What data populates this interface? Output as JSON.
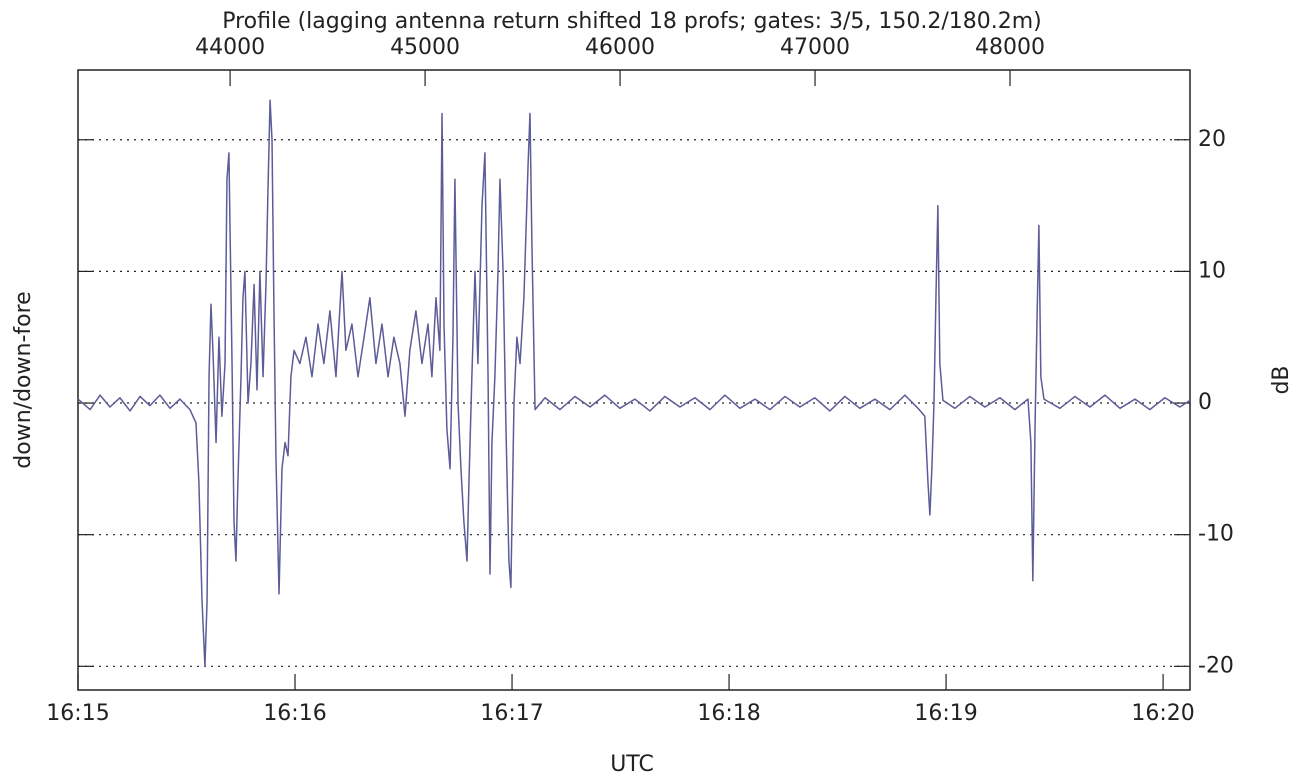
{
  "chart_data": {
    "type": "line",
    "title": "Profile (lagging antenna return shifted 18 profs; gates: 3/5, 150.2/180.2m)",
    "x_label": "UTC",
    "y_label": "down/down-fore",
    "y2_label": "dB",
    "xlim": [
      43220,
      48923
    ],
    "xticks": [
      {
        "value": 43220,
        "label": "16:15"
      },
      {
        "value": 44333,
        "label": "16:16"
      },
      {
        "value": 45446,
        "label": "16:17"
      },
      {
        "value": 46559,
        "label": "16:18"
      },
      {
        "value": 47672,
        "label": "16:19"
      },
      {
        "value": 48785,
        "label": "16:20"
      }
    ],
    "x2ticks": [
      44000,
      45000,
      46000,
      47000,
      48000
    ],
    "ylim": [
      -21.8,
      25.3
    ],
    "yticks": [
      -20,
      -10,
      0,
      10,
      20
    ],
    "grid": true,
    "x": [
      43220,
      43282,
      43333,
      43384,
      43435,
      43487,
      43538,
      43589,
      43640,
      43692,
      43743,
      43794,
      43825,
      43840,
      43856,
      43871,
      43882,
      43892,
      43902,
      43912,
      43928,
      43943,
      43958,
      43974,
      43984,
      43994,
      44010,
      44020,
      44030,
      44040,
      44056,
      44066,
      44076,
      44092,
      44107,
      44123,
      44138,
      44153,
      44169,
      44184,
      44194,
      44205,
      44215,
      44225,
      44235,
      44251,
      44266,
      44282,
      44297,
      44312,
      44328,
      44358,
      44389,
      44420,
      44451,
      44481,
      44512,
      44543,
      44574,
      44594,
      44625,
      44656,
      44687,
      44717,
      44748,
      44779,
      44810,
      44840,
      44871,
      44897,
      44922,
      44953,
      44984,
      45015,
      45035,
      45056,
      45076,
      45087,
      45097,
      45112,
      45128,
      45143,
      45153,
      45169,
      45184,
      45199,
      45215,
      45225,
      45240,
      45256,
      45271,
      45292,
      45307,
      45323,
      45333,
      45343,
      45358,
      45374,
      45384,
      45400,
      45415,
      45430,
      45440,
      45456,
      45471,
      45487,
      45507,
      45528,
      45538,
      45548,
      45564,
      45615,
      45692,
      45769,
      45846,
      45922,
      45999,
      46076,
      46153,
      46230,
      46307,
      46384,
      46461,
      46538,
      46615,
      46692,
      46769,
      46846,
      46922,
      46999,
      47076,
      47153,
      47230,
      47307,
      47384,
      47461,
      47528,
      47563,
      47579,
      47589,
      47599,
      47610,
      47620,
      47630,
      47640,
      47656,
      47717,
      47794,
      47871,
      47948,
      48025,
      48092,
      48107,
      48117,
      48128,
      48138,
      48148,
      48158,
      48174,
      48256,
      48333,
      48410,
      48487,
      48564,
      48641,
      48717,
      48794,
      48871,
      48923
    ],
    "series": [
      {
        "color": "#5c5c98",
        "values": [
          0.3,
          -0.5,
          0.6,
          -0.3,
          0.4,
          -0.6,
          0.5,
          -0.2,
          0.6,
          -0.4,
          0.3,
          -0.5,
          -1.5,
          -6,
          -15,
          -20,
          -15,
          2,
          7.5,
          4,
          -3,
          5,
          -1,
          3,
          17,
          19,
          3,
          -9,
          -12,
          -6,
          2,
          8,
          10,
          0,
          3,
          9,
          1,
          10,
          2,
          9,
          16,
          23,
          20,
          7,
          -4,
          -14.5,
          -5,
          -3,
          -4,
          2,
          4,
          3,
          5,
          2,
          6,
          3,
          7,
          2,
          10,
          4,
          6,
          2,
          5,
          8,
          3,
          6,
          2,
          5,
          3,
          -1,
          4,
          7,
          3,
          6,
          2,
          8,
          4,
          22,
          6,
          -2,
          -5,
          5,
          17,
          0,
          -5,
          -9,
          -12,
          -6,
          2,
          10,
          3,
          15,
          19,
          2,
          -13,
          -3,
          2,
          10,
          17,
          10,
          -2,
          -12,
          -14,
          0,
          5,
          3,
          8,
          18,
          22,
          12,
          -0.5,
          0.4,
          -0.5,
          0.5,
          -0.3,
          0.6,
          -0.4,
          0.3,
          -0.6,
          0.5,
          -0.3,
          0.4,
          -0.5,
          0.6,
          -0.4,
          0.3,
          -0.5,
          0.5,
          -0.3,
          0.4,
          -0.6,
          0.5,
          -0.4,
          0.3,
          -0.5,
          0.6,
          -0.4,
          -1,
          -6,
          -8.5,
          -5,
          0,
          8,
          15,
          3,
          0.2,
          -0.4,
          0.5,
          -0.3,
          0.4,
          -0.5,
          0.3,
          -3,
          -13.5,
          -2,
          6,
          13.5,
          2,
          0.3,
          -0.4,
          0.5,
          -0.3,
          0.6,
          -0.4,
          0.3,
          -0.5,
          0.4,
          -0.3,
          0.2
        ]
      }
    ]
  }
}
